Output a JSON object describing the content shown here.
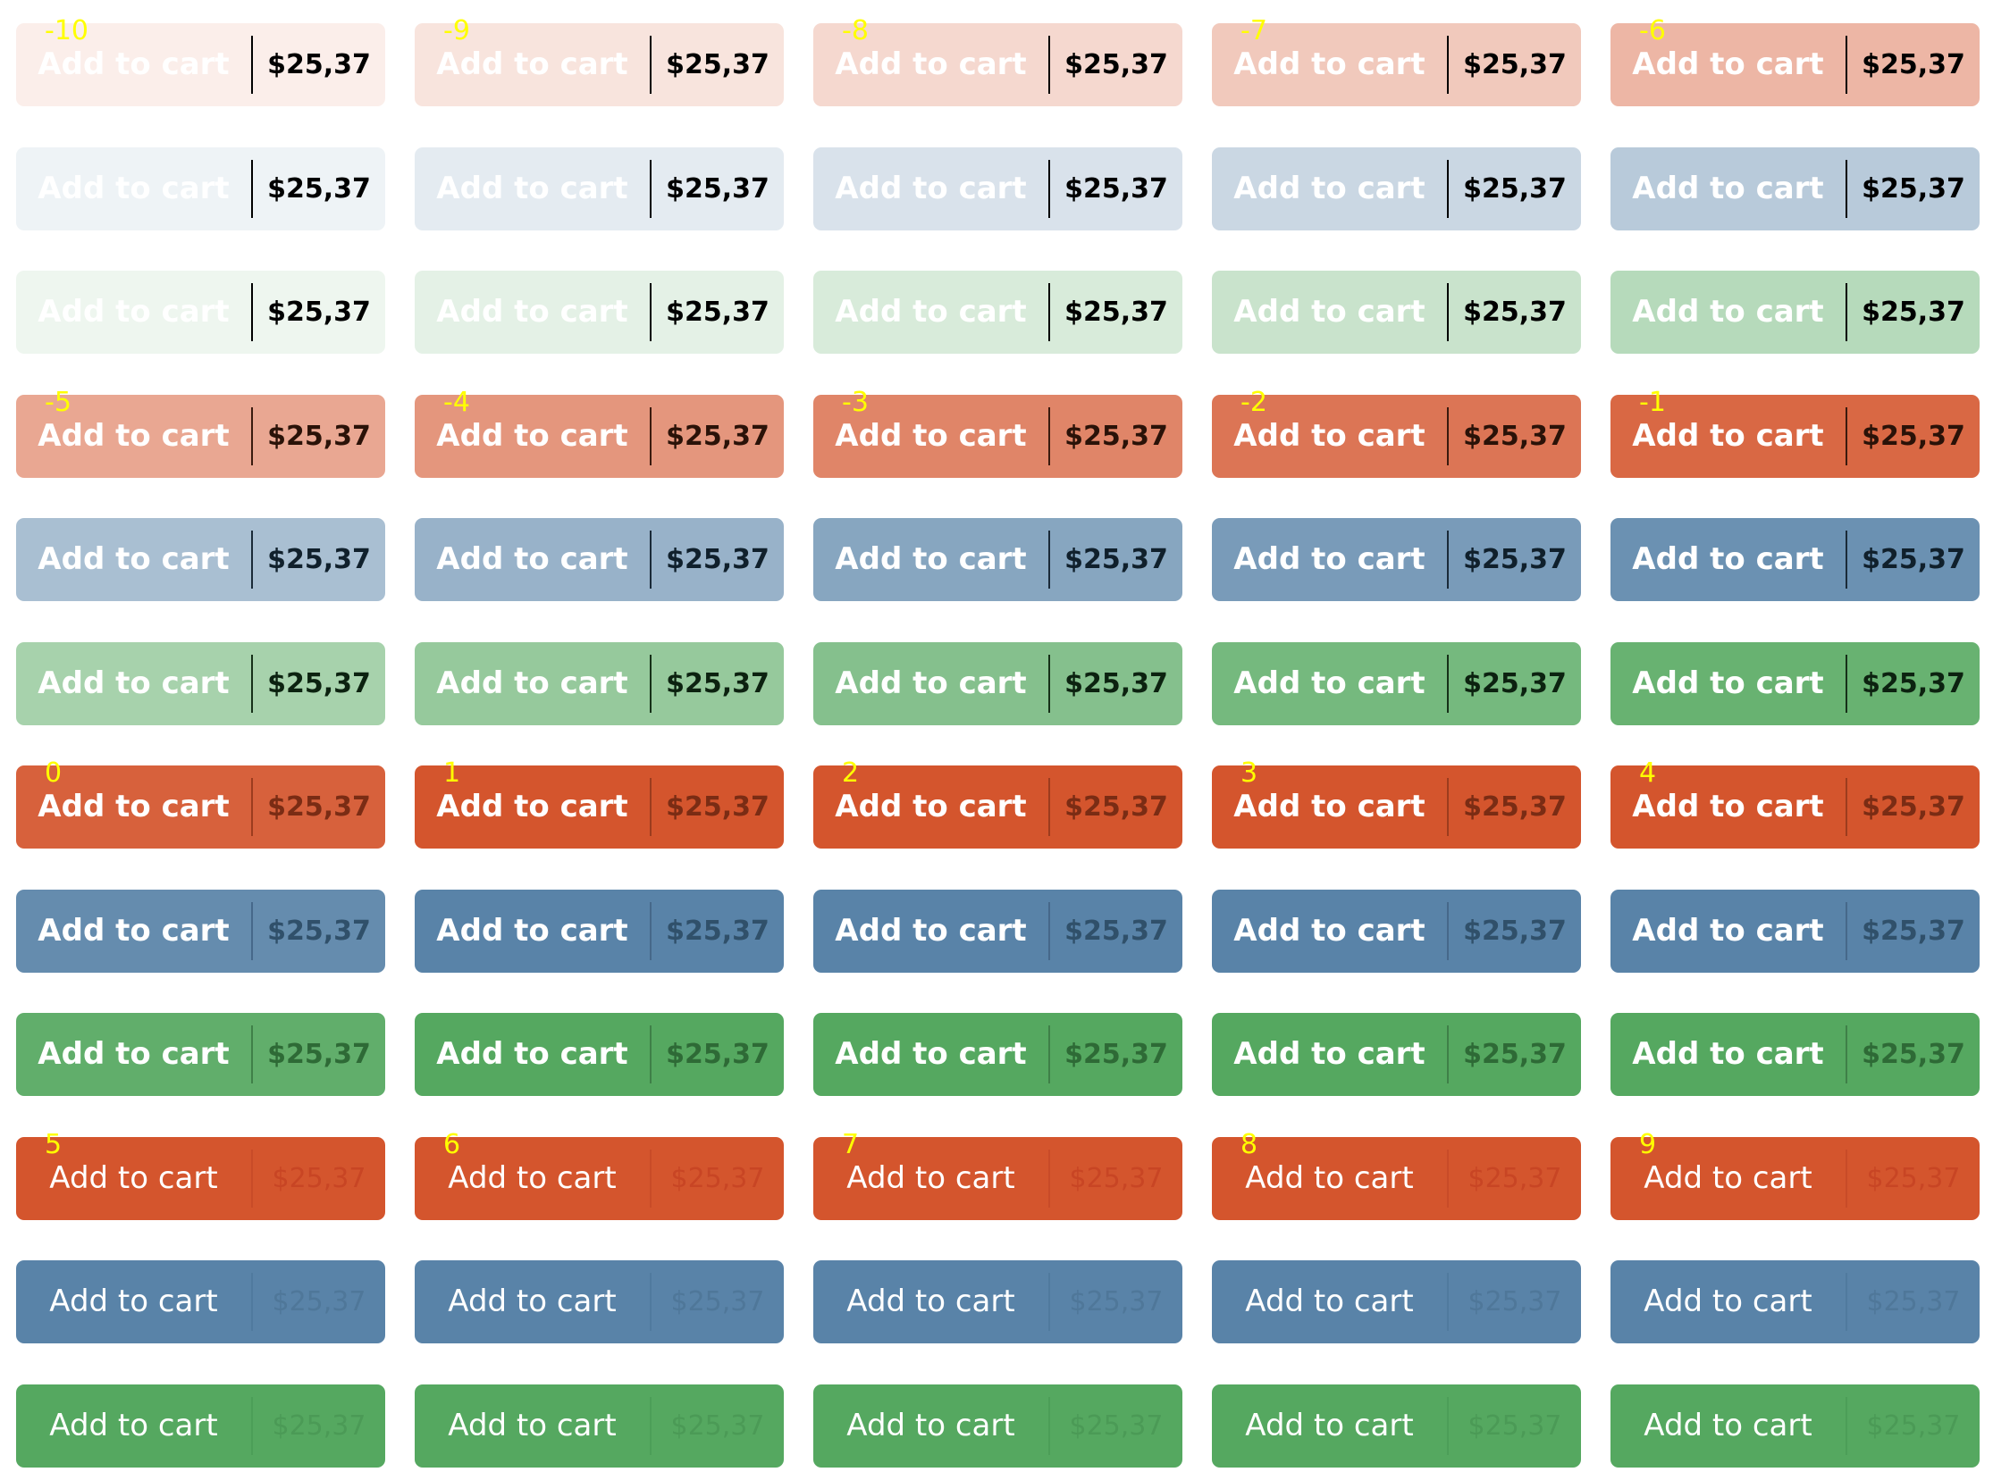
{
  "button": {
    "label": "Add to cart",
    "price": "$25,37"
  },
  "colors": {
    "red": "#d4552d",
    "blue": "#5983a8",
    "green": "#55a860",
    "number_label": "#ffff00"
  },
  "groups": [
    {
      "name": "group-1",
      "numbers": [
        "-10",
        "-9",
        "-8",
        "-7",
        "-6"
      ],
      "rows": [
        {
          "color": "red",
          "fill_levels": [
            0.1,
            0.16,
            0.23,
            0.32,
            0.43
          ],
          "text_weight": "bold",
          "price_color": "#000000",
          "divider_color": "#000000"
        },
        {
          "color": "blue",
          "fill_levels": [
            0.1,
            0.16,
            0.23,
            0.32,
            0.43
          ],
          "text_weight": "bold",
          "price_color": "#000000",
          "divider_color": "#000000"
        },
        {
          "color": "green",
          "fill_levels": [
            0.1,
            0.16,
            0.23,
            0.32,
            0.43
          ],
          "text_weight": "bold",
          "price_color": "#000000",
          "divider_color": "#000000"
        }
      ]
    },
    {
      "name": "group-2",
      "numbers": [
        "-5",
        "-4",
        "-3",
        "-2",
        "-1"
      ],
      "rows": [
        {
          "color": "red",
          "fill_levels": [
            0.52,
            0.62,
            0.72,
            0.81,
            0.89
          ],
          "text_weight": "bold",
          "price_color": "#2a1208",
          "divider_color": "#3a1a0e"
        },
        {
          "color": "blue",
          "fill_levels": [
            0.52,
            0.62,
            0.72,
            0.81,
            0.89
          ],
          "text_weight": "bold",
          "price_color": "#10202c",
          "divider_color": "#1a2a38"
        },
        {
          "color": "green",
          "fill_levels": [
            0.52,
            0.62,
            0.72,
            0.81,
            0.89
          ],
          "text_weight": "bold",
          "price_color": "#0c2210",
          "divider_color": "#163018"
        }
      ]
    },
    {
      "name": "group-3",
      "numbers": [
        "0",
        "1",
        "2",
        "3",
        "4"
      ],
      "rows": [
        {
          "color": "red",
          "fill_levels": [
            0.93,
            1.0,
            1.0,
            1.0,
            1.0
          ],
          "text_weight": "bold",
          "price_color": "#7a2c14",
          "divider_color": "#9c3c1e"
        },
        {
          "color": "blue",
          "fill_levels": [
            0.93,
            1.0,
            1.0,
            1.0,
            1.0
          ],
          "text_weight": "bold",
          "price_color": "#30506a",
          "divider_color": "#46688a"
        },
        {
          "color": "green",
          "fill_levels": [
            0.93,
            1.0,
            1.0,
            1.0,
            1.0
          ],
          "text_weight": "bold",
          "price_color": "#2e6a36",
          "divider_color": "#3f8048"
        }
      ]
    },
    {
      "name": "group-4",
      "numbers": [
        "5",
        "6",
        "7",
        "8",
        "9"
      ],
      "rows": [
        {
          "color": "red",
          "fill_levels": [
            1.0,
            1.0,
            1.0,
            1.0,
            1.0
          ],
          "text_weight": "normal",
          "price_color": "#c84524",
          "divider_color": "#c84b28"
        },
        {
          "color": "blue",
          "fill_levels": [
            1.0,
            1.0,
            1.0,
            1.0,
            1.0
          ],
          "text_weight": "normal",
          "price_color": "#4f7799",
          "divider_color": "#507a9e"
        },
        {
          "color": "green",
          "fill_levels": [
            1.0,
            1.0,
            1.0,
            1.0,
            1.0
          ],
          "text_weight": "normal",
          "price_color": "#4b9a56",
          "divider_color": "#4c9e58"
        }
      ]
    }
  ]
}
